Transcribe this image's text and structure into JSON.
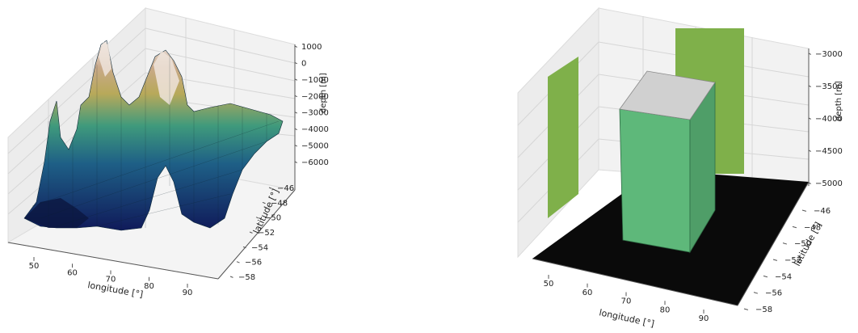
{
  "chart_data": [
    {
      "type": "surface3d",
      "title": "",
      "xlabel": "longitude [°]",
      "ylabel": "latitude [°]",
      "zlabel": "depth [m]",
      "xticks": [
        "50",
        "60",
        "70",
        "80",
        "90"
      ],
      "yticks": [
        "−46",
        "−48",
        "−50",
        "−52",
        "−54",
        "−56",
        "−58"
      ],
      "zticks": [
        "1000",
        "0",
        "−1000",
        "−2000",
        "−3000",
        "−4000",
        "−5000",
        "−6000"
      ],
      "xlim": [
        45,
        97
      ],
      "ylim": [
        -59,
        -45
      ],
      "zlim": [
        -6000,
        1000
      ],
      "colormap": "gist_earth",
      "grid": true,
      "ridges": [
        {
          "longitude": 55,
          "latitude": -47,
          "depth": -2300
        },
        {
          "longitude": 60,
          "latitude": -47,
          "depth": 800
        },
        {
          "longitude": 72,
          "latitude": -52,
          "depth": 200
        },
        {
          "longitude": 76,
          "latitude": -53,
          "depth": -500
        }
      ]
    },
    {
      "type": "bar3d",
      "title": "",
      "xlabel": "longitude [°]",
      "ylabel": "latitude [°]",
      "zlabel": "depth [m]",
      "xticks": [
        "50",
        "60",
        "70",
        "80",
        "90"
      ],
      "yticks": [
        "−46",
        "−48",
        "−50",
        "−52",
        "−54",
        "−56",
        "−58"
      ],
      "zticks": [
        "−3000",
        "−3500",
        "−4000",
        "−4500",
        "−5000"
      ],
      "xlim": [
        45,
        97
      ],
      "ylim": [
        -59,
        -45
      ],
      "zlim": [
        -5000,
        -3000
      ],
      "grid": true,
      "colors": {
        "floor": "#0a0a0a",
        "box_side": "#5eb87a",
        "box_top": "#d0d0d0",
        "walls": "#7fb04a"
      }
    }
  ]
}
